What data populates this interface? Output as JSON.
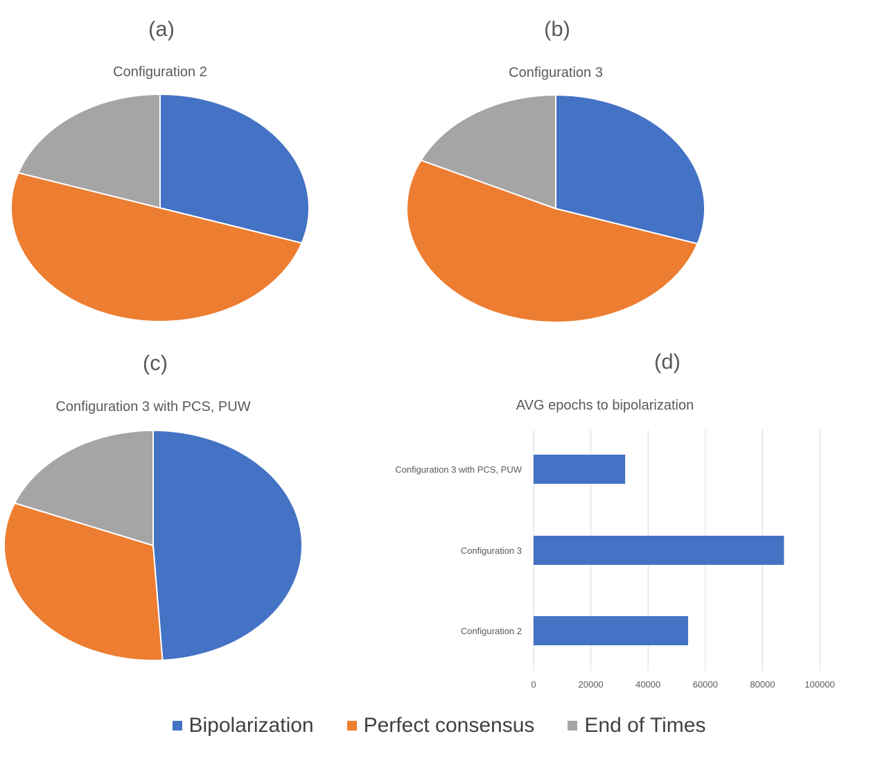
{
  "colors": {
    "Bipolarization": "#4472C4",
    "Perfect consensus": "#ED7D31",
    "End of Times": "#A5A5A5"
  },
  "legend": [
    {
      "label": "Bipolarization",
      "color": "#4472C4"
    },
    {
      "label": "Perfect consensus",
      "color": "#ED7D31"
    },
    {
      "label": "End of Times",
      "color": "#A5A5A5"
    }
  ],
  "chart_data": [
    {
      "panel": "(a)",
      "type": "pie",
      "title": "Configuration 2",
      "categories": [
        "Bipolarization",
        "Perfect consensus",
        "End of Times"
      ],
      "values": [
        30,
        50,
        20
      ]
    },
    {
      "panel": "(b)",
      "type": "pie",
      "title": "Configuration 3",
      "categories": [
        "Bipolarization",
        "Perfect consensus",
        "End of Times"
      ],
      "values": [
        30,
        52,
        18
      ]
    },
    {
      "panel": "(c)",
      "type": "pie",
      "title": "Configuration 3 with PCS, PUW",
      "categories": [
        "Bipolarization",
        "Perfect consensus",
        "End of Times"
      ],
      "values": [
        49,
        32,
        19
      ]
    },
    {
      "panel": "(d)",
      "type": "bar",
      "orientation": "horizontal",
      "title": "AVG epochs to bipolarization",
      "categories": [
        "Configuration 3 with PCS, PUW",
        "Configuration 3",
        "Configuration 2"
      ],
      "values": [
        32000,
        87500,
        54000
      ],
      "xlim": [
        0,
        100000
      ],
      "xticks": [
        "0",
        "20000",
        "40000",
        "60000",
        "80000",
        "100000"
      ],
      "grid": true
    }
  ]
}
